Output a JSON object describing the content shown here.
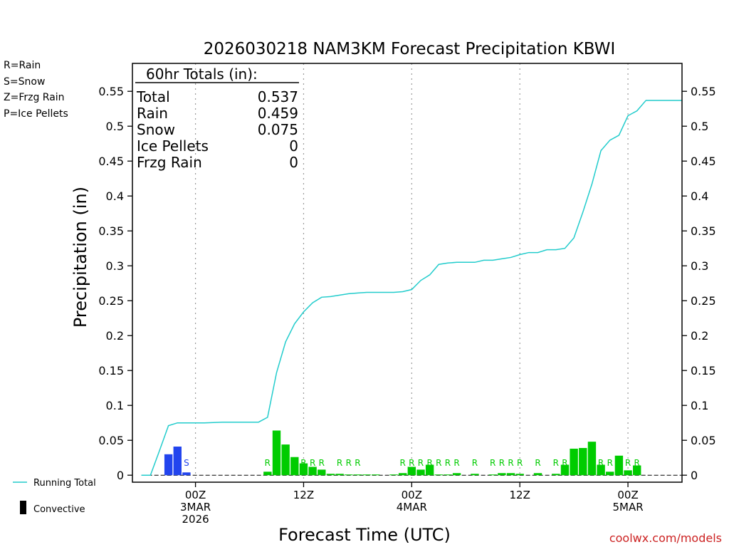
{
  "chart_data": {
    "type": "bar",
    "title": "2026030218 NAM3KM Forecast Precipitation KBWI",
    "xlabel": "Forecast Time (UTC)",
    "ylabel": "Precipitation (in)",
    "ylim": [
      -0.01,
      0.59
    ],
    "yticks": [
      0,
      0.05,
      0.1,
      0.15,
      0.2,
      0.25,
      0.3,
      0.35,
      0.4,
      0.45,
      0.5,
      0.55
    ],
    "ytick_labels": [
      "0",
      "0.05",
      "0.1",
      "0.15",
      "0.2",
      "0.25",
      "0.3",
      "0.35",
      "0.4",
      "0.45",
      "0.5",
      "0.55"
    ],
    "x_unit": "forecast hour",
    "xlim": [
      -1,
      60
    ],
    "x_gridlines": [
      6,
      18,
      30,
      42,
      54
    ],
    "x_ticks": [
      {
        "hour": 6,
        "line1": "00Z",
        "line2": "3MAR",
        "line3": "2026"
      },
      {
        "hour": 18,
        "line1": "12Z",
        "line2": "",
        "line3": ""
      },
      {
        "hour": 30,
        "line1": "00Z",
        "line2": "4MAR",
        "line3": ""
      },
      {
        "hour": 42,
        "line1": "12Z",
        "line2": "",
        "line3": ""
      },
      {
        "hour": 54,
        "line1": "00Z",
        "line2": "5MAR",
        "line3": ""
      }
    ],
    "legend_left": {
      "rain": {
        "label": "R=Rain",
        "color": "#00dd00"
      },
      "snow": {
        "label": "S=Snow",
        "color": "#2244ee"
      },
      "frzg": {
        "label": "Z=Frzg Rain",
        "color": "#ff8822"
      },
      "pellets": {
        "label": "P=Ice Pellets",
        "color": "#ee1199"
      }
    },
    "legend_bottom": {
      "running": {
        "label": "Running Total",
        "color": "#22cccc"
      },
      "convective": {
        "label": "Convective",
        "color": "#000000"
      }
    },
    "totals": {
      "header": "60hr Totals (in):",
      "rows": [
        {
          "label": "Total",
          "value": "0.537"
        },
        {
          "label": "Rain",
          "value": "0.459"
        },
        {
          "label": "Snow",
          "value": "0.075"
        },
        {
          "label": "Ice Pellets",
          "value": "0"
        },
        {
          "label": "Frzg Rain",
          "value": "0"
        }
      ]
    },
    "series": [
      {
        "name": "Snow",
        "type": "S",
        "color": "#2244ee",
        "hours": [
          3,
          4,
          5
        ],
        "values": [
          0.03,
          0.041,
          0.004
        ]
      },
      {
        "name": "Rain",
        "type": "R",
        "color": "#00cc00",
        "hours": [
          14,
          15,
          16,
          17,
          18,
          19,
          20,
          21,
          22,
          23,
          24,
          25,
          26,
          28,
          29,
          30,
          31,
          32,
          33,
          34,
          35,
          37,
          39,
          40,
          41,
          42,
          44,
          46,
          47,
          48,
          49,
          50,
          51,
          52,
          53,
          54,
          55
        ],
        "values": [
          0.005,
          0.064,
          0.044,
          0.026,
          0.017,
          0.012,
          0.008,
          0.002,
          0.002,
          0.001,
          0.0005,
          0.0005,
          0.0005,
          0.001,
          0.003,
          0.012,
          0.008,
          0.015,
          0.001,
          0.0005,
          0.003,
          0.002,
          0.001,
          0.003,
          0.003,
          0.002,
          0.003,
          0.002,
          0.015,
          0.038,
          0.039,
          0.048,
          0.015,
          0.005,
          0.028,
          0.007,
          0.014
        ]
      }
    ],
    "type_marks": [
      {
        "text": "S",
        "hour": 3,
        "color": "#2244ee"
      },
      {
        "text": "S",
        "hour": 4,
        "color": "#2244ee"
      },
      {
        "text": "S",
        "hour": 5,
        "color": "#2244ee"
      },
      {
        "text": "R",
        "hour": 14,
        "color": "#00cc00"
      },
      {
        "text": "R",
        "hour": 15,
        "color": "#00cc00"
      },
      {
        "text": "R",
        "hour": 16,
        "color": "#00cc00"
      },
      {
        "text": "R",
        "hour": 17,
        "color": "#00cc00"
      },
      {
        "text": "R",
        "hour": 18,
        "color": "#00cc00"
      },
      {
        "text": "R",
        "hour": 19,
        "color": "#00cc00"
      },
      {
        "text": "R",
        "hour": 20,
        "color": "#00cc00"
      },
      {
        "text": "R",
        "hour": 22,
        "color": "#00cc00"
      },
      {
        "text": "R",
        "hour": 23,
        "color": "#00cc00"
      },
      {
        "text": "R",
        "hour": 24,
        "color": "#00cc00"
      },
      {
        "text": "R",
        "hour": 29,
        "color": "#00cc00"
      },
      {
        "text": "R",
        "hour": 30,
        "color": "#00cc00"
      },
      {
        "text": "R",
        "hour": 31,
        "color": "#00cc00"
      },
      {
        "text": "R",
        "hour": 32,
        "color": "#00cc00"
      },
      {
        "text": "R",
        "hour": 33,
        "color": "#00cc00"
      },
      {
        "text": "R",
        "hour": 34,
        "color": "#00cc00"
      },
      {
        "text": "R",
        "hour": 35,
        "color": "#00cc00"
      },
      {
        "text": "R",
        "hour": 37,
        "color": "#00cc00"
      },
      {
        "text": "R",
        "hour": 39,
        "color": "#00cc00"
      },
      {
        "text": "R",
        "hour": 40,
        "color": "#00cc00"
      },
      {
        "text": "R",
        "hour": 41,
        "color": "#00cc00"
      },
      {
        "text": "R",
        "hour": 42,
        "color": "#00cc00"
      },
      {
        "text": "R",
        "hour": 44,
        "color": "#00cc00"
      },
      {
        "text": "R",
        "hour": 46,
        "color": "#00cc00"
      },
      {
        "text": "R",
        "hour": 47,
        "color": "#00cc00"
      },
      {
        "text": "R",
        "hour": 48,
        "color": "#00cc00"
      },
      {
        "text": "R",
        "hour": 49,
        "color": "#00cc00"
      },
      {
        "text": "R",
        "hour": 50,
        "color": "#00cc00"
      },
      {
        "text": "R",
        "hour": 51,
        "color": "#00cc00"
      },
      {
        "text": "R",
        "hour": 52,
        "color": "#00cc00"
      },
      {
        "text": "R",
        "hour": 53,
        "color": "#00cc00"
      },
      {
        "text": "R",
        "hour": 54,
        "color": "#00cc00"
      },
      {
        "text": "R",
        "hour": 55,
        "color": "#00cc00"
      }
    ],
    "running_total": {
      "name": "Running Total",
      "color": "#22cccc",
      "x": [
        0,
        1,
        2,
        3,
        4,
        5,
        6,
        7,
        8,
        9,
        10,
        11,
        12,
        13,
        14,
        15,
        16,
        17,
        18,
        19,
        20,
        21,
        22,
        23,
        24,
        25,
        26,
        27,
        28,
        29,
        30,
        31,
        32,
        33,
        34,
        35,
        36,
        37,
        38,
        39,
        40,
        41,
        42,
        43,
        44,
        45,
        46,
        47,
        48,
        49,
        50,
        51,
        52,
        53,
        54,
        55,
        56,
        57,
        58,
        59,
        60
      ],
      "y": [
        0,
        0,
        0.035,
        0.071,
        0.075,
        0.075,
        0.075,
        0.075,
        0.0755,
        0.076,
        0.076,
        0.076,
        0.076,
        0.076,
        0.083,
        0.147,
        0.191,
        0.217,
        0.234,
        0.247,
        0.255,
        0.256,
        0.258,
        0.26,
        0.261,
        0.262,
        0.262,
        0.262,
        0.262,
        0.263,
        0.266,
        0.279,
        0.287,
        0.302,
        0.304,
        0.305,
        0.305,
        0.305,
        0.308,
        0.308,
        0.31,
        0.312,
        0.316,
        0.319,
        0.319,
        0.323,
        0.323,
        0.325,
        0.34,
        0.377,
        0.417,
        0.465,
        0.48,
        0.487,
        0.515,
        0.522,
        0.537,
        0.537,
        0.537,
        0.537,
        0.537
      ]
    },
    "zero_line": {
      "style": "dashed",
      "color": "#000000"
    },
    "watermark": "coolwx.com/models"
  }
}
